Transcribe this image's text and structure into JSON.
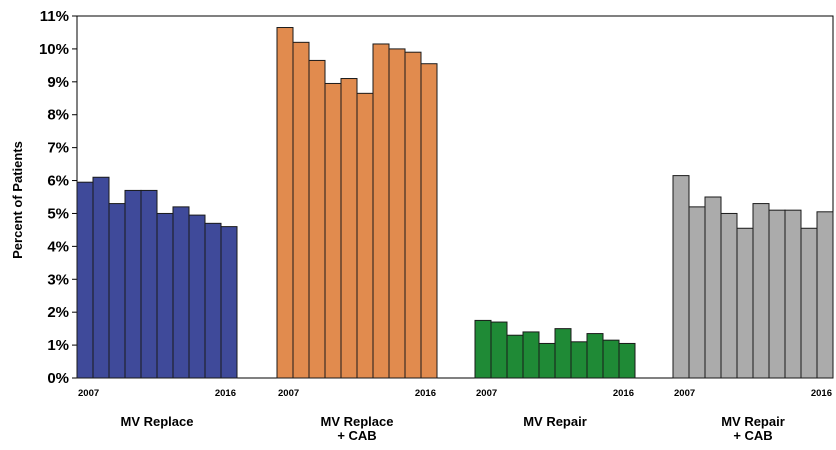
{
  "chart_data": {
    "type": "bar",
    "ylabel": "Percent of Patients",
    "ylim": [
      0,
      11
    ],
    "yticks": [
      "0%",
      "1%",
      "2%",
      "3%",
      "4%",
      "5%",
      "6%",
      "7%",
      "8%",
      "9%",
      "10%",
      "11%"
    ],
    "grid": false,
    "year_start": "2007",
    "year_end": "2016",
    "groups": [
      {
        "label_lines": [
          "MV Replace"
        ],
        "color": "#3f4a9a",
        "values": [
          5.95,
          6.1,
          5.3,
          5.7,
          5.7,
          5.0,
          5.2,
          4.95,
          4.7,
          4.6
        ]
      },
      {
        "label_lines": [
          "MV Replace",
          "+ CAB"
        ],
        "color": "#e18b4e",
        "values": [
          10.65,
          10.2,
          9.65,
          8.95,
          9.1,
          8.65,
          10.15,
          10.0,
          9.9,
          9.55
        ]
      },
      {
        "label_lines": [
          "MV Repair"
        ],
        "color": "#1f8a36",
        "values": [
          1.75,
          1.7,
          1.3,
          1.4,
          1.05,
          1.5,
          1.1,
          1.35,
          1.15,
          1.05
        ]
      },
      {
        "label_lines": [
          "MV Repair",
          "+ CAB"
        ],
        "color": "#ababab",
        "values": [
          6.15,
          5.2,
          5.5,
          5.0,
          4.55,
          5.3,
          5.1,
          5.1,
          4.55,
          5.05
        ]
      }
    ]
  }
}
